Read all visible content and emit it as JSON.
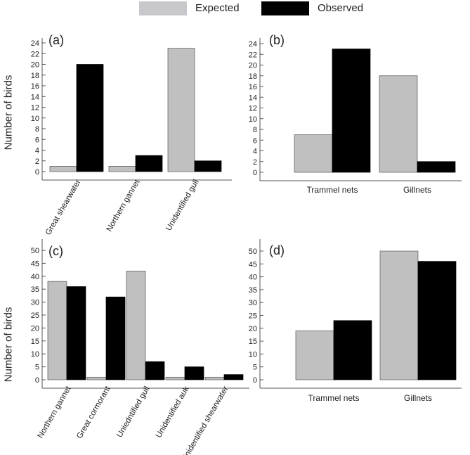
{
  "legend": {
    "expected": "Expected",
    "observed": "Observed"
  },
  "ylabels": {
    "top": "Number of birds",
    "bottom": "Number of birds"
  },
  "colors": {
    "expected": "#c0c0c0",
    "observed": "#000000",
    "axis": "#555555"
  },
  "chart_data": [
    {
      "panel": "(a)",
      "type": "bar",
      "categories": [
        "Great shearwater",
        "Northern gannet",
        "Unidentified gull"
      ],
      "series": [
        {
          "name": "Expected",
          "values": [
            1,
            1,
            23
          ]
        },
        {
          "name": "Observed",
          "values": [
            20,
            3,
            2
          ]
        }
      ],
      "ylim": [
        0,
        24
      ],
      "yticks": [
        0,
        2,
        4,
        6,
        8,
        10,
        12,
        14,
        16,
        18,
        20,
        22,
        24
      ],
      "xtick_rotation": "rotated",
      "grid": false
    },
    {
      "panel": "(b)",
      "type": "bar",
      "categories": [
        "Trammel nets",
        "Gillnets"
      ],
      "series": [
        {
          "name": "Expected",
          "values": [
            7,
            18
          ]
        },
        {
          "name": "Observed",
          "values": [
            23,
            2
          ]
        }
      ],
      "ylim": [
        0,
        24
      ],
      "yticks": [
        0,
        2,
        4,
        6,
        8,
        10,
        12,
        14,
        16,
        18,
        20,
        22,
        24
      ],
      "xtick_rotation": "horizontal",
      "grid": false
    },
    {
      "panel": "(c)",
      "type": "bar",
      "categories": [
        "Northern gannet",
        "Great cormorant",
        "Uniedntified gull",
        "Unidentified auk",
        "Unidentified shearwater"
      ],
      "series": [
        {
          "name": "Expected",
          "values": [
            38,
            1,
            42,
            1,
            1
          ]
        },
        {
          "name": "Observed",
          "values": [
            36,
            32,
            7,
            5,
            2
          ]
        }
      ],
      "ylim": [
        0,
        50
      ],
      "yticks": [
        0,
        5,
        10,
        15,
        20,
        25,
        30,
        35,
        40,
        45,
        50
      ],
      "xtick_rotation": "rotated",
      "grid": false
    },
    {
      "panel": "(d)",
      "type": "bar",
      "categories": [
        "Trammel nets",
        "Gillnets"
      ],
      "series": [
        {
          "name": "Expected",
          "values": [
            19,
            50
          ]
        },
        {
          "name": "Observed",
          "values": [
            23,
            46
          ]
        }
      ],
      "ylim": [
        0,
        50
      ],
      "yticks": [
        0,
        5,
        10,
        15,
        20,
        25,
        30,
        35,
        40,
        45,
        50
      ],
      "xtick_rotation": "horizontal",
      "grid": false
    }
  ]
}
